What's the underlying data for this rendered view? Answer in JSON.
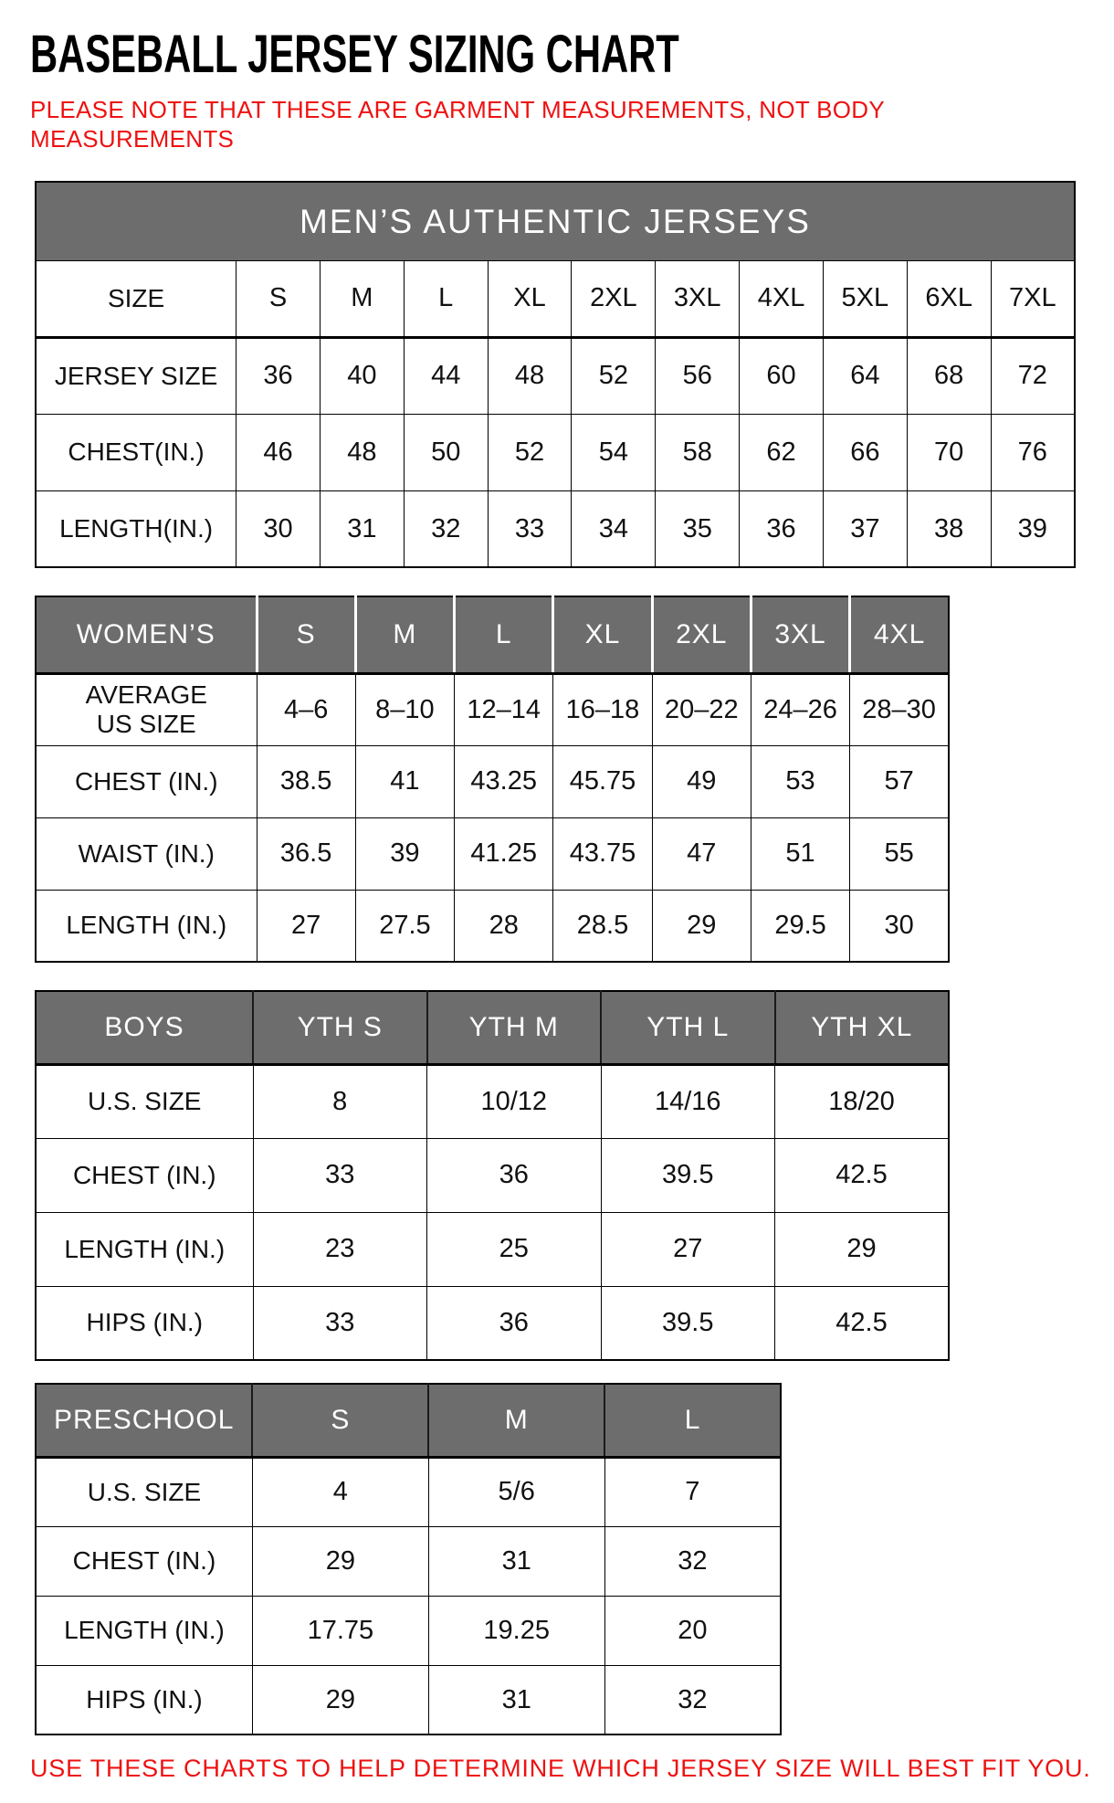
{
  "page": {
    "title": "BASEBALL JERSEY SIZING CHART",
    "note": "PLEASE NOTE THAT THESE ARE GARMENT MEASUREMENTS, NOT BODY\nMEASUREMENTS",
    "footer": "USE THESE CHARTS TO HELP DETERMINE WHICH JERSEY SIZE WILL BEST FIT YOU.",
    "colors": {
      "accent_red": "#ee1111",
      "header_gray": "#6d6d6d",
      "border_black": "#000000"
    }
  },
  "tables": {
    "men": {
      "banner": "MEN’S AUTHENTIC JERSEYS",
      "rows": [
        {
          "label": "SIZE",
          "values": [
            "S",
            "M",
            "L",
            "XL",
            "2XL",
            "3XL",
            "4XL",
            "5XL",
            "6XL",
            "7XL"
          ]
        },
        {
          "label": "JERSEY SIZE",
          "values": [
            "36",
            "40",
            "44",
            "48",
            "52",
            "56",
            "60",
            "64",
            "68",
            "72"
          ]
        },
        {
          "label": "CHEST(IN.)",
          "values": [
            "46",
            "48",
            "50",
            "52",
            "54",
            "58",
            "62",
            "66",
            "70",
            "76"
          ]
        },
        {
          "label": "LENGTH(IN.)",
          "values": [
            "30",
            "31",
            "32",
            "33",
            "34",
            "35",
            "36",
            "37",
            "38",
            "39"
          ]
        }
      ]
    },
    "women": {
      "header": {
        "label": "WOMEN’S",
        "cols": [
          "S",
          "M",
          "L",
          "XL",
          "2XL",
          "3XL",
          "4XL"
        ]
      },
      "rows": [
        {
          "label": "AVERAGE\nUS SIZE",
          "values": [
            "4–6",
            "8–10",
            "12–14",
            "16–18",
            "20–22",
            "24–26",
            "28–30"
          ]
        },
        {
          "label": "CHEST (IN.)",
          "values": [
            "38.5",
            "41",
            "43.25",
            "45.75",
            "49",
            "53",
            "57"
          ]
        },
        {
          "label": "WAIST (IN.)",
          "values": [
            "36.5",
            "39",
            "41.25",
            "43.75",
            "47",
            "51",
            "55"
          ]
        },
        {
          "label": "LENGTH (IN.)",
          "values": [
            "27",
            "27.5",
            "28",
            "28.5",
            "29",
            "29.5",
            "30"
          ]
        }
      ]
    },
    "boys": {
      "header": {
        "label": "BOYS",
        "cols": [
          "YTH S",
          "YTH M",
          "YTH L",
          "YTH XL"
        ]
      },
      "rows": [
        {
          "label": "U.S. SIZE",
          "values": [
            "8",
            "10/12",
            "14/16",
            "18/20"
          ]
        },
        {
          "label": "CHEST (IN.)",
          "values": [
            "33",
            "36",
            "39.5",
            "42.5"
          ]
        },
        {
          "label": "LENGTH (IN.)",
          "values": [
            "23",
            "25",
            "27",
            "29"
          ]
        },
        {
          "label": "HIPS (IN.)",
          "values": [
            "33",
            "36",
            "39.5",
            "42.5"
          ]
        }
      ]
    },
    "preschool": {
      "header": {
        "label": "PRESCHOOL",
        "cols": [
          "S",
          "M",
          "L"
        ]
      },
      "rows": [
        {
          "label": "U.S. SIZE",
          "values": [
            "4",
            "5/6",
            "7"
          ]
        },
        {
          "label": "CHEST (IN.)",
          "values": [
            "29",
            "31",
            "32"
          ]
        },
        {
          "label": "LENGTH (IN.)",
          "values": [
            "17.75",
            "19.25",
            "20"
          ]
        },
        {
          "label": "HIPS (IN.)",
          "values": [
            "29",
            "31",
            "32"
          ]
        }
      ]
    }
  }
}
